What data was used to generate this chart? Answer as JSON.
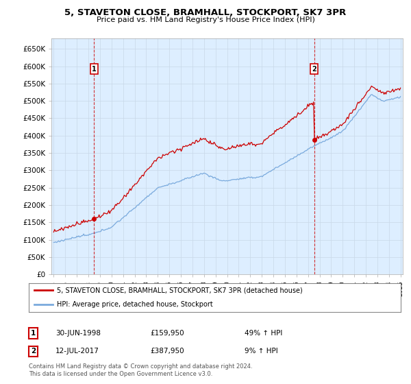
{
  "title": "5, STAVETON CLOSE, BRAMHALL, STOCKPORT, SK7 3PR",
  "subtitle": "Price paid vs. HM Land Registry's House Price Index (HPI)",
  "hpi_label": "HPI: Average price, detached house, Stockport",
  "property_label": "5, STAVETON CLOSE, BRAMHALL, STOCKPORT, SK7 3PR (detached house)",
  "hpi_color": "#7aaadd",
  "property_color": "#cc0000",
  "marker_color": "#cc0000",
  "annotation_box_color": "#cc0000",
  "chart_bg_color": "#ddeeff",
  "sale1_date": 1998.496,
  "sale1_price": 159950,
  "sale1_date_str": "30-JUN-1998",
  "sale1_hpi_pct": "49% ↑ HPI",
  "sale2_date": 2017.536,
  "sale2_price": 387950,
  "sale2_date_str": "12-JUL-2017",
  "sale2_hpi_pct": "9% ↑ HPI",
  "footer1": "Contains HM Land Registry data © Crown copyright and database right 2024.",
  "footer2": "This data is licensed under the Open Government Licence v3.0.",
  "ylim_min": 0,
  "ylim_max": 680000,
  "ytick_step": 50000,
  "xmin": 1995,
  "xmax": 2025,
  "background_color": "#ffffff",
  "grid_color": "#c8d8e8"
}
